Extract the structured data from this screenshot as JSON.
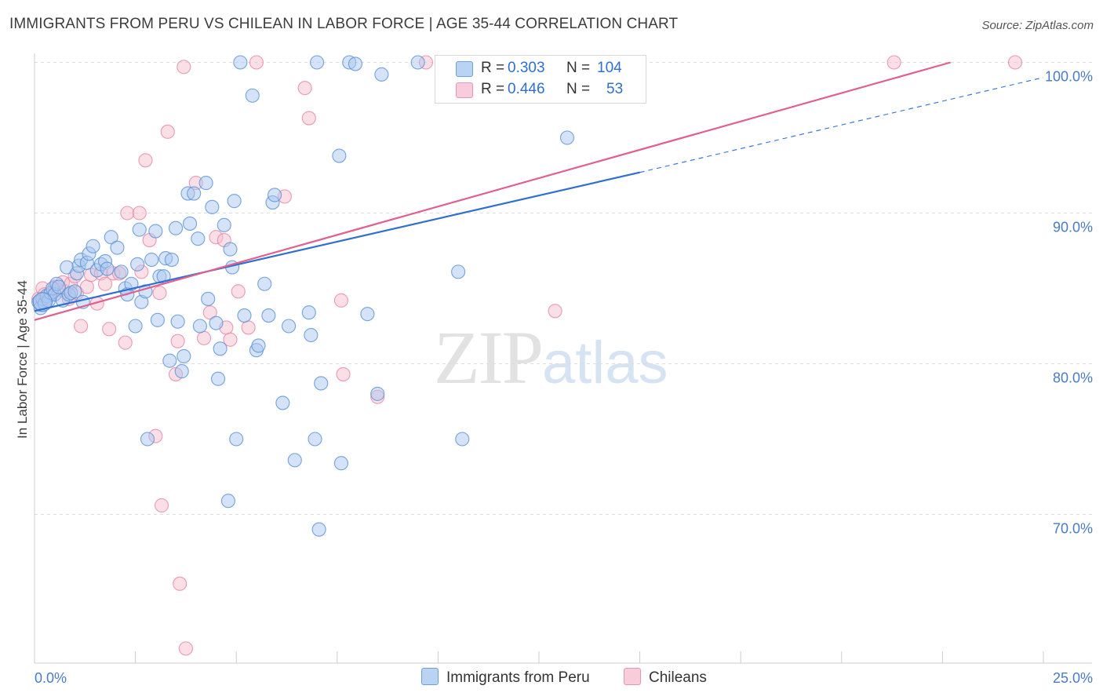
{
  "title": "IMMIGRANTS FROM PERU VS CHILEAN IN LABOR FORCE | AGE 35-44 CORRELATION CHART",
  "source": "Source: ZipAtlas.com",
  "watermark": {
    "zip": "ZIP",
    "atlas": "atlas"
  },
  "colors": {
    "blue_fill": "#a9c8f0",
    "blue_stroke": "#5f93d6",
    "blue_line": "#2f6fd0",
    "pink_fill": "#f6bfd0",
    "pink_stroke": "#e88aa8",
    "pink_line": "#e0608f",
    "tick_text": "#4a7ac8",
    "grid": "#dddddd"
  },
  "legend_stats": [
    {
      "r_label": "R =",
      "r_value": "0.303",
      "n_label": "N =",
      "n_value": "104"
    },
    {
      "r_label": "R =",
      "r_value": "0.446",
      "n_label": "N =",
      "n_value": "53"
    }
  ],
  "chart_data": {
    "type": "scatter",
    "title": "IMMIGRANTS FROM PERU VS CHILEAN IN LABOR FORCE | AGE 35-44 CORRELATION CHART",
    "xlabel": "",
    "ylabel": "In Labor Force | Age 35-44",
    "xlim": [
      0,
      25
    ],
    "ylim": [
      60,
      100.5
    ],
    "x_tick_labels": [
      "0.0%",
      "25.0%"
    ],
    "y_ticks": [
      70,
      80,
      90,
      100
    ],
    "y_tick_labels": [
      "70.0%",
      "80.0%",
      "90.0%",
      "100.0%"
    ],
    "grid": true,
    "legend_position": "bottom",
    "series": [
      {
        "name": "Immigrants from Peru",
        "color": "blue",
        "r": 0.303,
        "n": 104,
        "trend": {
          "x_start": 0,
          "y_start": 83.5,
          "x_solid_end": 15,
          "y_solid_end": 92.7,
          "x_end": 25,
          "y_end": 99.0
        },
        "points": [
          [
            0.1,
            84.1
          ],
          [
            0.15,
            83.7
          ],
          [
            0.2,
            84.3
          ],
          [
            0.25,
            84.0
          ],
          [
            0.3,
            84.5
          ],
          [
            0.35,
            84.2
          ],
          [
            0.4,
            84.7
          ],
          [
            0.45,
            85.0
          ],
          [
            0.5,
            84.6
          ],
          [
            0.55,
            85.3
          ],
          [
            0.6,
            85.1
          ],
          [
            0.7,
            84.2
          ],
          [
            0.8,
            86.4
          ],
          [
            0.85,
            84.6
          ],
          [
            0.9,
            84.7
          ],
          [
            1.0,
            84.8
          ],
          [
            1.05,
            86.0
          ],
          [
            1.1,
            86.5
          ],
          [
            1.15,
            86.9
          ],
          [
            1.2,
            84.1
          ],
          [
            1.3,
            86.7
          ],
          [
            1.35,
            87.3
          ],
          [
            1.45,
            87.8
          ],
          [
            1.55,
            86.2
          ],
          [
            1.65,
            86.6
          ],
          [
            1.75,
            86.8
          ],
          [
            1.8,
            86.3
          ],
          [
            1.9,
            88.4
          ],
          [
            2.05,
            87.7
          ],
          [
            2.15,
            86.1
          ],
          [
            2.25,
            85.0
          ],
          [
            2.3,
            84.6
          ],
          [
            2.4,
            85.3
          ],
          [
            2.5,
            82.5
          ],
          [
            2.55,
            86.6
          ],
          [
            2.6,
            88.9
          ],
          [
            2.65,
            84.1
          ],
          [
            2.75,
            84.8
          ],
          [
            2.8,
            75.0
          ],
          [
            2.9,
            86.9
          ],
          [
            3.0,
            88.8
          ],
          [
            3.05,
            82.9
          ],
          [
            3.1,
            85.8
          ],
          [
            3.2,
            85.8
          ],
          [
            3.25,
            87.0
          ],
          [
            3.35,
            80.2
          ],
          [
            3.4,
            86.9
          ],
          [
            3.5,
            89.0
          ],
          [
            3.55,
            82.8
          ],
          [
            3.65,
            79.5
          ],
          [
            3.7,
            80.5
          ],
          [
            3.8,
            91.3
          ],
          [
            3.85,
            89.3
          ],
          [
            3.95,
            91.3
          ],
          [
            4.05,
            88.3
          ],
          [
            4.1,
            82.5
          ],
          [
            4.25,
            92.0
          ],
          [
            4.3,
            84.3
          ],
          [
            4.4,
            90.4
          ],
          [
            4.5,
            82.7
          ],
          [
            4.55,
            79.0
          ],
          [
            4.6,
            81.0
          ],
          [
            4.7,
            89.2
          ],
          [
            4.8,
            70.9
          ],
          [
            4.85,
            87.6
          ],
          [
            4.9,
            86.4
          ],
          [
            4.95,
            90.8
          ],
          [
            5.0,
            75.0
          ],
          [
            5.1,
            100.0
          ],
          [
            5.2,
            83.2
          ],
          [
            5.4,
            97.8
          ],
          [
            5.5,
            80.9
          ],
          [
            5.55,
            81.2
          ],
          [
            5.7,
            85.3
          ],
          [
            5.8,
            83.2
          ],
          [
            5.9,
            90.7
          ],
          [
            5.95,
            91.2
          ],
          [
            6.15,
            77.4
          ],
          [
            6.3,
            82.5
          ],
          [
            6.45,
            73.6
          ],
          [
            6.8,
            83.4
          ],
          [
            6.85,
            81.9
          ],
          [
            6.95,
            75.0
          ],
          [
            7.0,
            100.0
          ],
          [
            7.05,
            69.0
          ],
          [
            7.1,
            78.7
          ],
          [
            7.55,
            93.8
          ],
          [
            7.6,
            73.4
          ],
          [
            7.8,
            100.0
          ],
          [
            7.95,
            99.9
          ],
          [
            8.25,
            83.3
          ],
          [
            8.5,
            78.0
          ],
          [
            8.6,
            99.2
          ],
          [
            9.5,
            100.0
          ],
          [
            10.5,
            86.1
          ],
          [
            10.6,
            75.0
          ],
          [
            12.3,
            100.0
          ],
          [
            12.35,
            100.0
          ],
          [
            12.4,
            100.0
          ],
          [
            12.45,
            100.0
          ],
          [
            12.5,
            100.0
          ],
          [
            12.55,
            100.0
          ],
          [
            13.1,
            100.0
          ],
          [
            13.2,
            95.0
          ]
        ]
      },
      {
        "name": "Chileans",
        "color": "pink",
        "r": 0.446,
        "n": 53,
        "trend": {
          "x_start": 0,
          "y_start": 82.9,
          "x_end": 22.7,
          "y_end": 100.0
        },
        "points": [
          [
            0.1,
            84.3
          ],
          [
            0.15,
            83.9
          ],
          [
            0.2,
            85.0
          ],
          [
            0.25,
            84.6
          ],
          [
            0.3,
            84.3
          ],
          [
            0.4,
            84.6
          ],
          [
            0.5,
            85.1
          ],
          [
            0.6,
            84.9
          ],
          [
            0.7,
            85.4
          ],
          [
            0.75,
            84.8
          ],
          [
            0.85,
            84.3
          ],
          [
            0.9,
            85.3
          ],
          [
            1.0,
            85.8
          ],
          [
            1.05,
            84.7
          ],
          [
            1.15,
            82.5
          ],
          [
            1.3,
            85.1
          ],
          [
            1.4,
            85.9
          ],
          [
            1.55,
            84.0
          ],
          [
            1.65,
            86.0
          ],
          [
            1.75,
            85.3
          ],
          [
            1.85,
            82.3
          ],
          [
            1.95,
            86.0
          ],
          [
            2.1,
            86.0
          ],
          [
            2.25,
            81.4
          ],
          [
            2.3,
            90.0
          ],
          [
            2.6,
            90.0
          ],
          [
            2.65,
            86.1
          ],
          [
            2.75,
            93.5
          ],
          [
            2.85,
            88.2
          ],
          [
            3.0,
            75.2
          ],
          [
            3.1,
            84.7
          ],
          [
            3.15,
            70.6
          ],
          [
            3.3,
            95.4
          ],
          [
            3.5,
            79.3
          ],
          [
            3.55,
            81.5
          ],
          [
            3.6,
            65.4
          ],
          [
            3.7,
            99.7
          ],
          [
            3.75,
            61.1
          ],
          [
            4.0,
            92.0
          ],
          [
            4.2,
            81.7
          ],
          [
            4.35,
            83.4
          ],
          [
            4.5,
            88.4
          ],
          [
            4.7,
            88.2
          ],
          [
            4.75,
            82.4
          ],
          [
            4.85,
            81.6
          ],
          [
            5.05,
            84.8
          ],
          [
            5.3,
            82.4
          ],
          [
            5.5,
            100.0
          ],
          [
            6.2,
            91.1
          ],
          [
            6.7,
            98.3
          ],
          [
            6.8,
            96.3
          ],
          [
            7.6,
            84.2
          ],
          [
            7.65,
            79.3
          ]
        ]
      }
    ]
  },
  "extra_pink_points": [
    [
      8.5,
      77.8
    ],
    [
      9.7,
      100.0
    ],
    [
      12.9,
      83.5
    ],
    [
      21.3,
      100.0
    ],
    [
      24.3,
      100.0
    ]
  ]
}
